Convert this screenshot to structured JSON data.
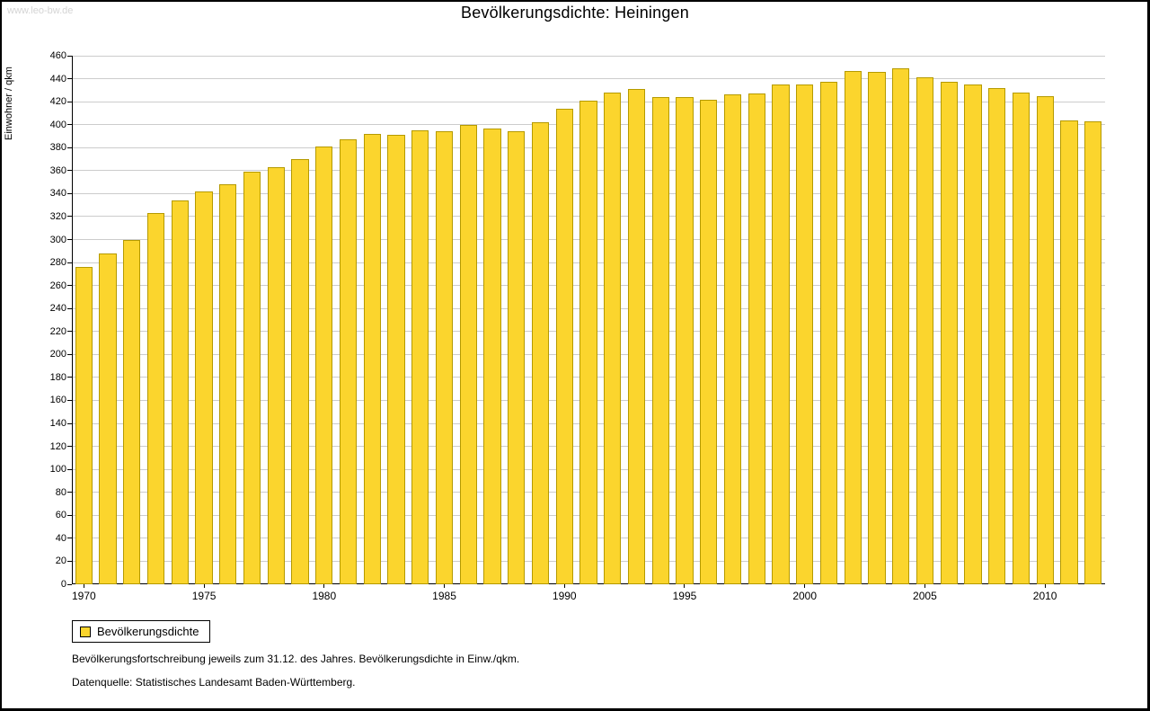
{
  "page": {
    "watermark": "www.leo-bw.de",
    "footnote1": "Bevölkerungsfortschreibung jeweils zum 31.12. des Jahres. Bevölkerungsdichte in Einw./qkm.",
    "footnote2": "Datenquelle: Statistisches Landesamt Baden-Württemberg."
  },
  "colors": {
    "bar_fill": "#fbd52d",
    "bar_border": "#b59a00",
    "grid": "#cccccc",
    "axis": "#000000"
  },
  "chart_data": {
    "type": "bar",
    "title": "Bevölkerungsdichte: Heiningen",
    "xlabel": "",
    "ylabel": "Einwohner / qkm",
    "ylim": [
      0,
      460
    ],
    "ytick_step": 20,
    "grid": true,
    "legend": [
      "Bevölkerungsdichte"
    ],
    "legend_position": "bottom-left",
    "xtick_labels": [
      1970,
      1975,
      1980,
      1985,
      1990,
      1995,
      2000,
      2005,
      2010
    ],
    "categories": [
      1970,
      1971,
      1972,
      1973,
      1974,
      1975,
      1976,
      1977,
      1978,
      1979,
      1980,
      1981,
      1982,
      1983,
      1984,
      1985,
      1986,
      1987,
      1988,
      1989,
      1990,
      1991,
      1992,
      1993,
      1994,
      1995,
      1996,
      1997,
      1998,
      1999,
      2000,
      2001,
      2002,
      2003,
      2004,
      2005,
      2006,
      2007,
      2008,
      2009,
      2010,
      2011,
      2012
    ],
    "values": [
      276,
      288,
      300,
      323,
      334,
      342,
      348,
      359,
      363,
      370,
      381,
      387,
      392,
      391,
      395,
      394,
      400,
      397,
      394,
      402,
      414,
      421,
      428,
      431,
      424,
      424,
      422,
      426,
      427,
      435,
      435,
      437,
      447,
      446,
      449,
      441,
      437,
      435,
      432,
      428,
      425,
      404,
      403
    ]
  }
}
